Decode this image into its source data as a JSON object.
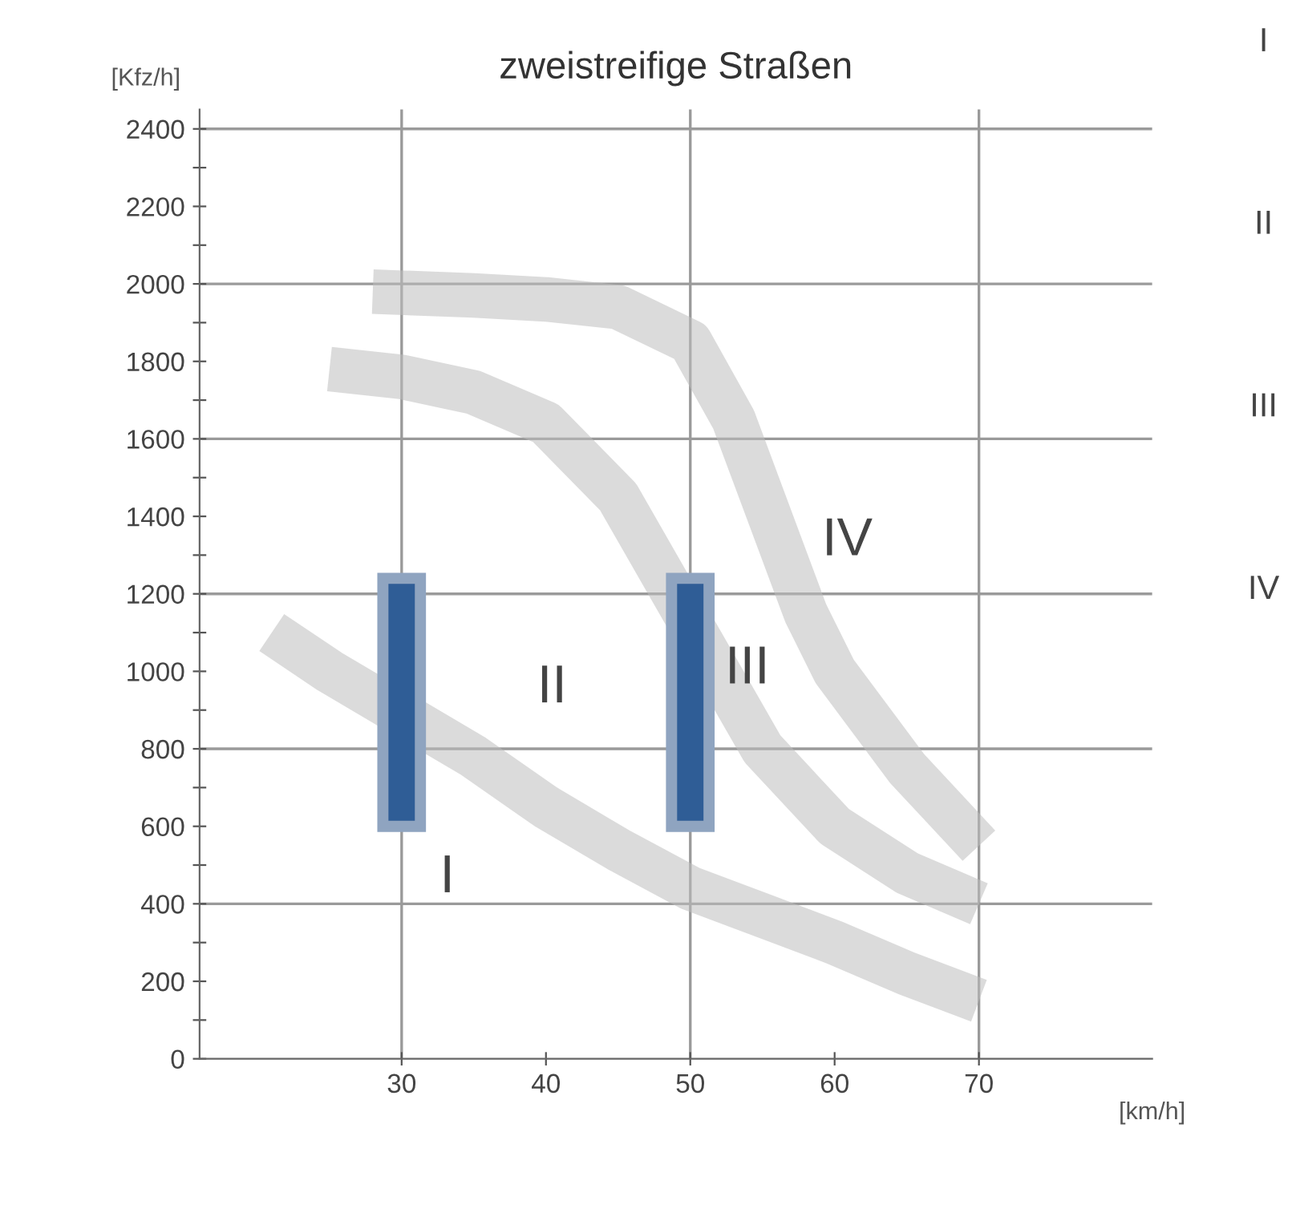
{
  "chart_data": {
    "type": "line",
    "title": "zweistreifige Straßen",
    "ylabel": "[Kfz/h]",
    "xlabel": "[km/h]",
    "xlim": [
      16,
      82
    ],
    "ylim": [
      0,
      2450
    ],
    "xticks": [
      30,
      40,
      50,
      60,
      70
    ],
    "yticks": [
      0,
      {
        "value": 100,
        "label": null
      },
      200,
      {
        "value": 300,
        "label": null
      },
      400,
      {
        "value": 500,
        "label": null
      },
      600,
      {
        "value": 700,
        "label": null
      },
      800,
      {
        "value": 900,
        "label": null
      },
      1000,
      {
        "value": 1100,
        "label": null
      },
      1200,
      {
        "value": 1300,
        "label": null
      },
      1400,
      {
        "value": 1500,
        "label": null
      },
      1600,
      {
        "value": 1700,
        "label": null
      },
      1800,
      {
        "value": 1900,
        "label": null
      },
      2000,
      {
        "value": 2100,
        "label": null
      },
      2200,
      {
        "value": 2300,
        "label": null
      },
      2400
    ],
    "grid": false,
    "legend": false,
    "series": [
      {
        "color": "#bdbdbd",
        "x": [
          21,
          25,
          35,
          40,
          45,
          50,
          55,
          60,
          65,
          70
        ],
        "values": [
          1100,
          1000,
          780,
          650,
          540,
          440,
          370,
          300,
          220,
          150
        ]
      },
      {
        "color": "#bdbdbd",
        "x": [
          25,
          30,
          35,
          40,
          45,
          55,
          60,
          65,
          70
        ],
        "values": [
          1780,
          1760,
          1720,
          1640,
          1450,
          800,
          600,
          480,
          400
        ]
      },
      {
        "color": "#bdbdbd",
        "x": [
          28,
          35,
          40,
          45,
          50,
          53,
          55,
          58,
          60,
          65,
          70
        ],
        "values": [
          1980,
          1970,
          1960,
          1940,
          1850,
          1650,
          1450,
          1150,
          1000,
          750,
          550
        ]
      },
      {
        "type": "bar",
        "color": "#2f5d96",
        "x": [
          30,
          50
        ],
        "base": [
          600,
          600
        ],
        "values": [
          640,
          640
        ]
      }
    ],
    "ref_lines": [
      {
        "axis": "y",
        "value": 400,
        "color": "#9a9a9a"
      },
      {
        "axis": "y",
        "value": 800,
        "color": "#9a9a9a"
      },
      {
        "axis": "y",
        "value": 1200,
        "color": "#9a9a9a"
      },
      {
        "axis": "y",
        "value": 1600,
        "color": "#9a9a9a"
      },
      {
        "axis": "y",
        "value": 2000,
        "color": "#9a9a9a"
      },
      {
        "axis": "y",
        "value": 2400,
        "color": "#9a9a9a"
      },
      {
        "axis": "x",
        "value": 30,
        "color": "#9a9a9a"
      },
      {
        "axis": "x",
        "value": 50,
        "color": "#9a9a9a"
      },
      {
        "axis": "x",
        "value": 70,
        "color": "#9a9a9a"
      }
    ],
    "annotations": [
      "I",
      "II",
      "III",
      "IV",
      "I",
      "II",
      "III",
      "IV"
    ]
  }
}
